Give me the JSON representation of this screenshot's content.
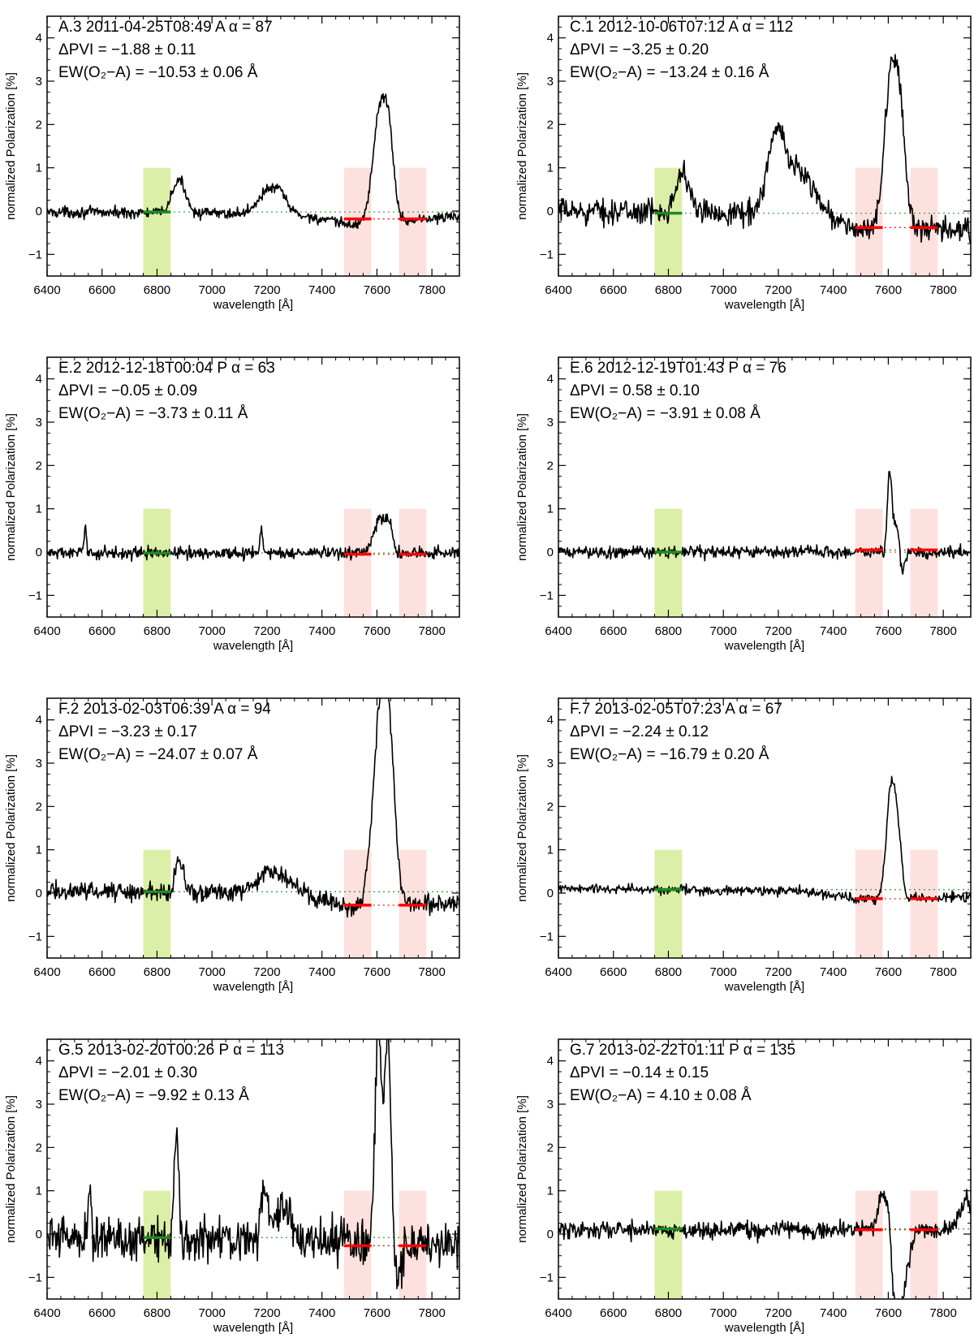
{
  "figure": {
    "xlabel": "wavelength [Å]",
    "ylabel": "normalized Polarization [%]",
    "xlim": [
      6400,
      7900
    ],
    "ylim": [
      -1.5,
      4.5
    ],
    "xticks": [
      "6400",
      "6600",
      "6800",
      "7000",
      "7200",
      "7400",
      "7600",
      "7800"
    ],
    "yticks": [
      "−1",
      "0",
      "1",
      "2",
      "3",
      "4"
    ],
    "bands": [
      {
        "x0": 6750,
        "x1": 6850,
        "y0": -1.5,
        "y1": 1.0,
        "color": "#dcefa8"
      },
      {
        "x0": 7480,
        "x1": 7580,
        "y0": -1.5,
        "y1": 1.0,
        "color": "#fde1de"
      },
      {
        "x0": 7680,
        "x1": 7780,
        "y0": -1.5,
        "y1": 1.0,
        "color": "#fde1de"
      }
    ],
    "colors": {
      "line": "#000000",
      "green_marker": "#1f8a1f",
      "red_marker": "#ff0000",
      "green_dots": "#2a9d2a",
      "red_dots": "#e00000"
    }
  },
  "chart_data": [
    {
      "type": "line",
      "label": "A.3",
      "date": "2011-04-25T08:49",
      "mode": "A",
      "alpha": "α =  87",
      "pvi_line": "ΔPVI  = −1.88 ± 0.11",
      "ew_line": "EW(O₂−A) = −10.53 ± 0.06 Å",
      "baseline": -0.02,
      "green_level": -0.02,
      "red_level": -0.18,
      "noise": 0.09,
      "features": [
        [
          6880,
          25,
          0.75
        ],
        [
          7200,
          35,
          0.5
        ],
        [
          7250,
          25,
          0.35
        ],
        [
          7610,
          25,
          2.5
        ],
        [
          7645,
          18,
          1.5
        ]
      ],
      "slope": [
        [
          6400,
          0.0
        ],
        [
          7300,
          -0.05
        ],
        [
          7500,
          -0.3
        ],
        [
          7900,
          -0.1
        ]
      ]
    },
    {
      "type": "line",
      "label": "C.1",
      "date": "2012-10-06T07:12",
      "mode": "A",
      "alpha": "α = 112",
      "pvi_line": "ΔPVI  = −3.25 ± 0.20",
      "ew_line": "EW(O₂−A) = −13.24 ± 0.16 Å",
      "baseline": -0.05,
      "green_level": -0.05,
      "red_level": -0.38,
      "noise": 0.2,
      "features": [
        [
          6850,
          25,
          0.9
        ],
        [
          7190,
          30,
          1.5
        ],
        [
          7270,
          60,
          1.0
        ],
        [
          7610,
          25,
          3.3
        ],
        [
          7645,
          20,
          2.0
        ]
      ],
      "slope": [
        [
          6400,
          0.05
        ],
        [
          7300,
          0.0
        ],
        [
          7500,
          -0.4
        ],
        [
          7900,
          -0.4
        ]
      ]
    },
    {
      "type": "line",
      "label": "E.2",
      "date": "2012-12-18T00:04",
      "mode": "P",
      "alpha": "α =  63",
      "pvi_line": "ΔPVI  = −0.05 ± 0.09",
      "ew_line": "EW(O₂−A) =  −3.73 ± 0.11 Å",
      "baseline": -0.02,
      "green_level": -0.02,
      "red_level": -0.05,
      "noise": 0.1,
      "features": [
        [
          6540,
          4,
          0.6
        ],
        [
          7180,
          5,
          0.5
        ],
        [
          7610,
          20,
          0.8
        ],
        [
          7645,
          12,
          0.6
        ]
      ],
      "slope": [
        [
          6400,
          0.0
        ],
        [
          7900,
          0.0
        ]
      ]
    },
    {
      "type": "line",
      "label": "E.6",
      "date": "2012-12-19T01:43",
      "mode": "P",
      "alpha": "α =  76",
      "pvi_line": "ΔPVI  =  0.58 ± 0.10",
      "ew_line": "EW(O₂−A) =  −3.91 ± 0.08 Å",
      "baseline": 0.0,
      "green_level": 0.0,
      "red_level": 0.05,
      "noise": 0.1,
      "features": [
        [
          7605,
          8,
          1.9
        ],
        [
          7630,
          10,
          0.7
        ],
        [
          7650,
          8,
          -0.6
        ]
      ],
      "slope": [
        [
          6400,
          0.0
        ],
        [
          7900,
          0.0
        ]
      ]
    },
    {
      "type": "line",
      "label": "F.2",
      "date": "2013-02-03T06:39",
      "mode": "A",
      "alpha": "α =  94",
      "pvi_line": "ΔPVI  = −3.23 ± 0.17",
      "ew_line": "EW(O₂−A) = −24.07 ± 0.07 Å",
      "baseline": 0.0,
      "green_level": 0.03,
      "red_level": -0.28,
      "noise": 0.15,
      "features": [
        [
          6880,
          15,
          0.75
        ],
        [
          7220,
          50,
          0.55
        ],
        [
          7615,
          28,
          4.6
        ],
        [
          7650,
          20,
          2.0
        ]
      ],
      "slope": [
        [
          6400,
          0.05
        ],
        [
          7300,
          0.0
        ],
        [
          7500,
          -0.3
        ],
        [
          7900,
          -0.2
        ]
      ]
    },
    {
      "type": "line",
      "label": "F.7",
      "date": "2013-02-05T07:23",
      "mode": "A",
      "alpha": "α =  67",
      "pvi_line": "ΔPVI  = −2.24 ± 0.12",
      "ew_line": "EW(O₂−A) = −16.79 ± 0.20 Å",
      "baseline": 0.05,
      "green_level": 0.08,
      "red_level": -0.13,
      "noise": 0.08,
      "features": [
        [
          7612,
          18,
          2.7
        ],
        [
          7640,
          12,
          0.8
        ]
      ],
      "slope": [
        [
          6400,
          0.05
        ],
        [
          7300,
          0.0
        ],
        [
          7500,
          -0.2
        ],
        [
          7900,
          -0.15
        ]
      ]
    },
    {
      "type": "line",
      "label": "G.5",
      "date": "2013-02-20T00:26",
      "mode": "P",
      "alpha": "α = 113",
      "pvi_line": "ΔPVI  = −2.01 ± 0.30",
      "ew_line": "EW(O₂−A) =  −9.92 ± 0.13 Å",
      "baseline": -0.05,
      "green_level": -0.08,
      "red_level": -0.27,
      "noise": 0.35,
      "features": [
        [
          6870,
          8,
          2.6
        ],
        [
          6555,
          4,
          1.4
        ],
        [
          7190,
          12,
          1.3
        ],
        [
          7260,
          30,
          0.7
        ],
        [
          7605,
          12,
          5.0
        ],
        [
          7640,
          12,
          5.0
        ],
        [
          7670,
          15,
          -1.0
        ]
      ],
      "slope": [
        [
          6400,
          0.0
        ],
        [
          7900,
          -0.2
        ]
      ]
    },
    {
      "type": "line",
      "label": "G.7",
      "date": "2013-02-22T01:11",
      "mode": "P",
      "alpha": "α = 135",
      "pvi_line": "ΔPVI  = −0.14 ± 0.15",
      "ew_line": "EW(O₂−A) =   4.10 ± 0.08 Å",
      "baseline": 0.05,
      "green_level": 0.12,
      "red_level": 0.1,
      "noise": 0.15,
      "features": [
        [
          7580,
          15,
          0.9
        ],
        [
          7600,
          8,
          0.6
        ],
        [
          7630,
          20,
          -1.6
        ],
        [
          7660,
          20,
          -0.8
        ],
        [
          7880,
          20,
          0.7
        ]
      ],
      "slope": [
        [
          6400,
          0.05
        ],
        [
          7900,
          0.05
        ]
      ]
    }
  ]
}
